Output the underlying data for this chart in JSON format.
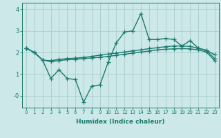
{
  "xlabel": "Humidex (Indice chaleur)",
  "ylabel": "",
  "xlim": [
    -0.5,
    23.5
  ],
  "ylim": [
    -0.55,
    4.3
  ],
  "xticks": [
    0,
    1,
    2,
    3,
    4,
    5,
    6,
    7,
    8,
    9,
    10,
    11,
    12,
    13,
    14,
    15,
    16,
    17,
    18,
    19,
    20,
    21,
    22,
    23
  ],
  "yticks": [
    0,
    1,
    2,
    3,
    4
  ],
  "ytick_labels": [
    "-0",
    "1",
    "2",
    "3",
    "4"
  ],
  "background_color": "#cce8e8",
  "grid_color": "#aacccc",
  "line_color": "#1a7a6e",
  "line_width": 1.0,
  "marker": "+",
  "marker_size": 4,
  "series": [
    [
      2.2,
      2.0,
      1.65,
      0.8,
      1.2,
      0.8,
      0.75,
      -0.3,
      0.45,
      0.5,
      1.55,
      2.45,
      2.95,
      3.0,
      3.8,
      2.6,
      2.6,
      2.65,
      2.6,
      2.3,
      2.55,
      2.2,
      2.1,
      1.9
    ],
    [
      2.2,
      2.0,
      1.65,
      1.62,
      1.68,
      1.72,
      1.74,
      1.77,
      1.82,
      1.88,
      1.93,
      1.97,
      2.02,
      2.08,
      2.12,
      2.18,
      2.22,
      2.27,
      2.3,
      2.3,
      2.28,
      2.2,
      2.1,
      1.72
    ],
    [
      2.2,
      2.0,
      1.65,
      1.58,
      1.62,
      1.67,
      1.68,
      1.72,
      1.75,
      1.78,
      1.82,
      1.87,
      1.92,
      1.97,
      2.02,
      2.07,
      2.12,
      2.15,
      2.17,
      2.18,
      2.17,
      2.12,
      2.02,
      1.62
    ]
  ]
}
